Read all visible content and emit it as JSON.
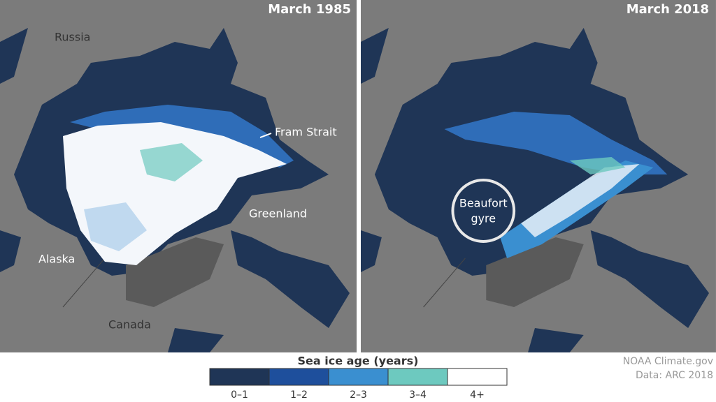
{
  "panels": [
    {
      "title": "March 1985",
      "labels": [
        "Russia",
        "Fram Strait",
        "Greenland",
        "Alaska",
        "Canada"
      ]
    },
    {
      "title": "March 2018",
      "labels": [
        "Beaufort",
        "gyre"
      ]
    }
  ],
  "legend": {
    "title": "Sea ice age (years)",
    "items": [
      {
        "label": "0–1",
        "color": "#1f3556"
      },
      {
        "label": "1–2",
        "color": "#1e4f9c"
      },
      {
        "label": "2–3",
        "color": "#3a8fd0"
      },
      {
        "label": "3–4",
        "color": "#6dc9bf"
      },
      {
        "label": "4+",
        "color": "#ffffff"
      }
    ]
  },
  "credits": [
    "NOAA Climate.gov",
    "Data: ARC 2018"
  ]
}
